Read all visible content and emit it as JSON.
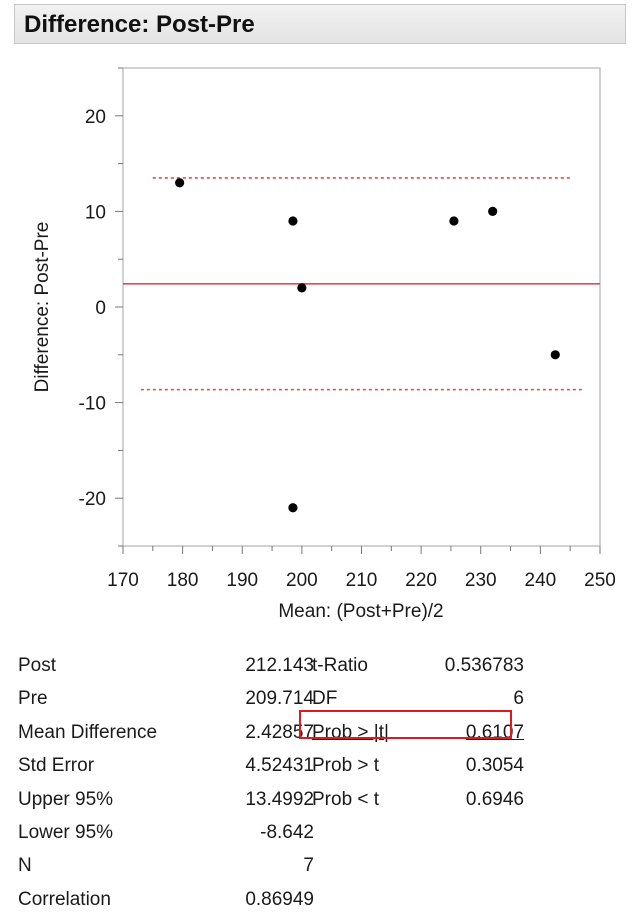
{
  "panel": {
    "title": "Difference: Post-Pre"
  },
  "chart_data": {
    "type": "scatter",
    "xlabel": "Mean: (Post+Pre)/2",
    "ylabel": "Difference: Post-Pre",
    "xlim": [
      170,
      250
    ],
    "ylim": [
      -25,
      25
    ],
    "x_ticks": [
      170,
      180,
      190,
      200,
      210,
      220,
      230,
      240,
      250
    ],
    "y_ticks": [
      -20,
      -10,
      0,
      10,
      20
    ],
    "points": [
      {
        "x": 179.5,
        "y": 13
      },
      {
        "x": 198.5,
        "y": 9
      },
      {
        "x": 200,
        "y": 2
      },
      {
        "x": 198.5,
        "y": -21
      },
      {
        "x": 225.5,
        "y": 9
      },
      {
        "x": 232,
        "y": 10
      },
      {
        "x": 242.5,
        "y": -5
      }
    ],
    "reference_lines": [
      {
        "y": 2.42857,
        "style": "solid",
        "x_from": 170,
        "x_to": 250
      },
      {
        "y": 13.4992,
        "style": "dotted",
        "x_from": 175,
        "x_to": 245
      },
      {
        "y": -8.642,
        "style": "dotted",
        "x_from": 173,
        "x_to": 247
      }
    ],
    "line_color": "#e8474f",
    "point_color": "#000000"
  },
  "stats": {
    "left": [
      {
        "label": "Post",
        "value": "212.143"
      },
      {
        "label": "Pre",
        "value": "209.714"
      },
      {
        "label": "Mean Difference",
        "value": "2.42857"
      },
      {
        "label": "Std Error",
        "value": "4.52431"
      },
      {
        "label": "Upper 95%",
        "value": "13.4992"
      },
      {
        "label": "Lower 95%",
        "value": "-8.642"
      },
      {
        "label": "N",
        "value": "7"
      },
      {
        "label": "Correlation",
        "value": "0.86949"
      }
    ],
    "right": [
      {
        "label": "t-Ratio",
        "value": "0.536783"
      },
      {
        "label": "DF",
        "value": "6"
      },
      {
        "label": "Prob > |t|",
        "value": "0.6107"
      },
      {
        "label": "Prob > t",
        "value": "0.3054"
      },
      {
        "label": "Prob < t",
        "value": "0.6946"
      }
    ]
  }
}
